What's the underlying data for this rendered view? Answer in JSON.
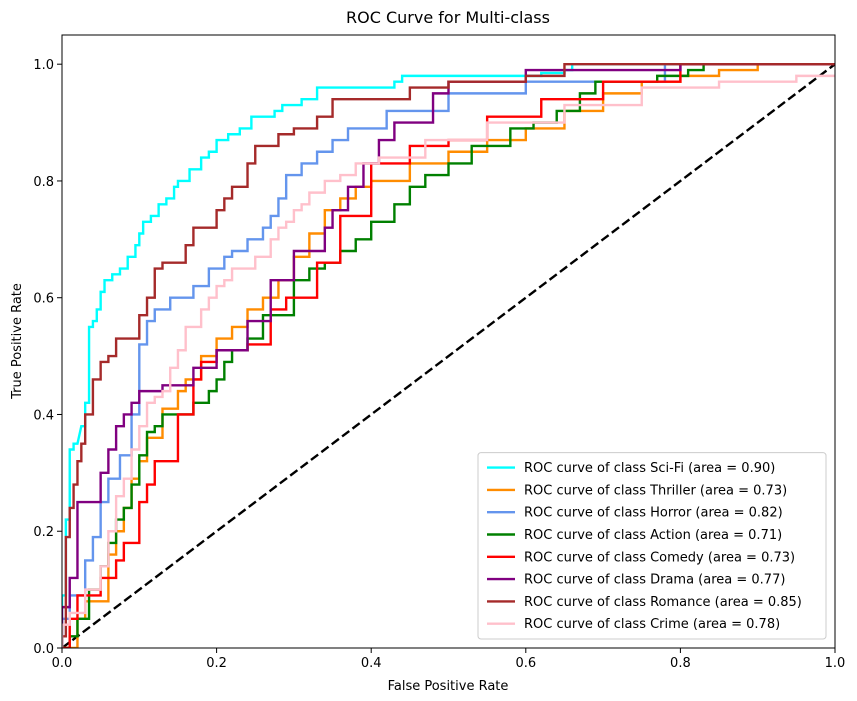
{
  "chart_data": {
    "type": "line",
    "title": "ROC Curve for Multi-class",
    "xlabel": "False Positive Rate",
    "ylabel": "True Positive Rate",
    "xlim": [
      0,
      1
    ],
    "ylim": [
      0,
      1.05
    ],
    "xticks": [
      "0.0",
      "0.2",
      "0.4",
      "0.6",
      "0.8",
      "1.0"
    ],
    "yticks": [
      "0.0",
      "0.2",
      "0.4",
      "0.6",
      "0.8",
      "1.0"
    ],
    "grid": false,
    "legend_position": "lower-right",
    "reference_line": {
      "x": [
        0,
        1
      ],
      "y": [
        0,
        1
      ],
      "color": "#000000",
      "style": "dashed"
    },
    "series": [
      {
        "label": "ROC curve of class Sci-Fi (area = 0.90)",
        "color": "#00ffff",
        "x": [
          0,
          0.0,
          0.005,
          0.005,
          0.01,
          0.01,
          0.015,
          0.015,
          0.02,
          0.025,
          0.03,
          0.03,
          0.035,
          0.035,
          0.04,
          0.04,
          0.045,
          0.045,
          0.05,
          0.05,
          0.055,
          0.055,
          0.065,
          0.065,
          0.075,
          0.075,
          0.085,
          0.085,
          0.095,
          0.095,
          0.1,
          0.1,
          0.105,
          0.105,
          0.115,
          0.115,
          0.125,
          0.125,
          0.135,
          0.135,
          0.145,
          0.145,
          0.15,
          0.15,
          0.165,
          0.165,
          0.18,
          0.18,
          0.19,
          0.19,
          0.2,
          0.2,
          0.215,
          0.215,
          0.23,
          0.23,
          0.245,
          0.245,
          0.275,
          0.275,
          0.285,
          0.285,
          0.31,
          0.31,
          0.33,
          0.33,
          0.43,
          0.43,
          0.44,
          0.44,
          0.62,
          0.62,
          0.65,
          0.65,
          0.66,
          0.66,
          0.7,
          0.7,
          1.0
        ],
        "y": [
          0,
          0.09,
          0.09,
          0.22,
          0.22,
          0.34,
          0.34,
          0.35,
          0.35,
          0.38,
          0.38,
          0.42,
          0.42,
          0.55,
          0.55,
          0.56,
          0.56,
          0.58,
          0.58,
          0.61,
          0.61,
          0.63,
          0.63,
          0.64,
          0.64,
          0.65,
          0.65,
          0.67,
          0.67,
          0.69,
          0.69,
          0.71,
          0.71,
          0.73,
          0.73,
          0.74,
          0.74,
          0.76,
          0.76,
          0.77,
          0.77,
          0.79,
          0.79,
          0.8,
          0.8,
          0.82,
          0.82,
          0.84,
          0.84,
          0.85,
          0.85,
          0.87,
          0.87,
          0.88,
          0.88,
          0.89,
          0.89,
          0.91,
          0.91,
          0.92,
          0.92,
          0.93,
          0.93,
          0.94,
          0.94,
          0.96,
          0.96,
          0.97,
          0.97,
          0.98,
          0.98,
          0.985,
          0.985,
          0.99,
          0.99,
          1.0,
          1.0,
          1.0,
          1.0
        ]
      },
      {
        "label": "ROC curve of class Thriller (area = 0.73)",
        "color": "#ff8c00",
        "x": [
          0,
          0.02,
          0.02,
          0.03,
          0.03,
          0.06,
          0.06,
          0.07,
          0.07,
          0.08,
          0.08,
          0.09,
          0.09,
          0.1,
          0.1,
          0.11,
          0.11,
          0.13,
          0.13,
          0.15,
          0.15,
          0.16,
          0.16,
          0.18,
          0.18,
          0.2,
          0.2,
          0.22,
          0.22,
          0.24,
          0.24,
          0.26,
          0.26,
          0.28,
          0.28,
          0.3,
          0.3,
          0.32,
          0.32,
          0.34,
          0.34,
          0.36,
          0.36,
          0.38,
          0.38,
          0.4,
          0.4,
          0.45,
          0.45,
          0.5,
          0.5,
          0.55,
          0.55,
          0.6,
          0.6,
          0.65,
          0.65,
          0.7,
          0.7,
          0.75,
          0.75,
          0.8,
          0.8,
          0.85,
          0.85,
          0.9,
          0.9,
          1.0
        ],
        "y": [
          0,
          0.0,
          0.05,
          0.05,
          0.08,
          0.08,
          0.16,
          0.16,
          0.2,
          0.2,
          0.24,
          0.24,
          0.29,
          0.29,
          0.32,
          0.32,
          0.36,
          0.36,
          0.41,
          0.41,
          0.44,
          0.44,
          0.46,
          0.46,
          0.5,
          0.5,
          0.53,
          0.53,
          0.55,
          0.55,
          0.58,
          0.58,
          0.6,
          0.6,
          0.63,
          0.63,
          0.67,
          0.67,
          0.71,
          0.71,
          0.75,
          0.75,
          0.77,
          0.77,
          0.79,
          0.79,
          0.8,
          0.8,
          0.83,
          0.83,
          0.85,
          0.85,
          0.87,
          0.87,
          0.89,
          0.89,
          0.92,
          0.92,
          0.95,
          0.95,
          0.97,
          0.97,
          0.98,
          0.98,
          0.99,
          0.99,
          1.0,
          1.0
        ]
      },
      {
        "label": "ROC curve of class Horror (area = 0.82)",
        "color": "#6495ed",
        "x": [
          0,
          0.0,
          0.01,
          0.01,
          0.03,
          0.03,
          0.04,
          0.04,
          0.05,
          0.05,
          0.06,
          0.06,
          0.075,
          0.075,
          0.09,
          0.09,
          0.1,
          0.1,
          0.11,
          0.11,
          0.12,
          0.12,
          0.14,
          0.14,
          0.17,
          0.17,
          0.19,
          0.19,
          0.21,
          0.21,
          0.22,
          0.22,
          0.24,
          0.24,
          0.26,
          0.26,
          0.27,
          0.27,
          0.28,
          0.28,
          0.29,
          0.29,
          0.31,
          0.31,
          0.33,
          0.33,
          0.35,
          0.35,
          0.37,
          0.37,
          0.42,
          0.42,
          0.5,
          0.5,
          0.6,
          0.6,
          0.78,
          0.78,
          1.0
        ],
        "y": [
          0,
          0.05,
          0.05,
          0.09,
          0.09,
          0.15,
          0.15,
          0.19,
          0.19,
          0.25,
          0.25,
          0.29,
          0.29,
          0.33,
          0.33,
          0.4,
          0.4,
          0.52,
          0.52,
          0.56,
          0.56,
          0.58,
          0.58,
          0.6,
          0.6,
          0.62,
          0.62,
          0.65,
          0.65,
          0.67,
          0.67,
          0.68,
          0.68,
          0.7,
          0.7,
          0.72,
          0.72,
          0.74,
          0.74,
          0.77,
          0.77,
          0.81,
          0.81,
          0.83,
          0.83,
          0.85,
          0.85,
          0.87,
          0.87,
          0.89,
          0.89,
          0.92,
          0.92,
          0.95,
          0.95,
          0.97,
          0.97,
          1.0,
          1.0
        ]
      },
      {
        "label": "ROC curve of class Action (area = 0.71)",
        "color": "#008000",
        "x": [
          0,
          0.01,
          0.01,
          0.02,
          0.02,
          0.035,
          0.035,
          0.05,
          0.05,
          0.06,
          0.06,
          0.07,
          0.07,
          0.08,
          0.08,
          0.09,
          0.09,
          0.1,
          0.1,
          0.11,
          0.11,
          0.12,
          0.12,
          0.13,
          0.13,
          0.17,
          0.17,
          0.19,
          0.19,
          0.2,
          0.2,
          0.21,
          0.21,
          0.22,
          0.22,
          0.24,
          0.24,
          0.26,
          0.26,
          0.3,
          0.3,
          0.32,
          0.32,
          0.34,
          0.34,
          0.36,
          0.36,
          0.38,
          0.38,
          0.4,
          0.4,
          0.43,
          0.43,
          0.45,
          0.45,
          0.47,
          0.47,
          0.5,
          0.5,
          0.53,
          0.53,
          0.58,
          0.58,
          0.61,
          0.61,
          0.64,
          0.64,
          0.67,
          0.67,
          0.69,
          0.69,
          0.77,
          0.77,
          0.81,
          0.81,
          0.83,
          0.83,
          0.93,
          0.93,
          1.0
        ],
        "y": [
          0,
          0.0,
          0.02,
          0.02,
          0.05,
          0.05,
          0.1,
          0.1,
          0.14,
          0.14,
          0.18,
          0.18,
          0.22,
          0.22,
          0.24,
          0.24,
          0.28,
          0.28,
          0.33,
          0.33,
          0.37,
          0.37,
          0.38,
          0.38,
          0.4,
          0.4,
          0.42,
          0.42,
          0.44,
          0.44,
          0.46,
          0.46,
          0.49,
          0.49,
          0.51,
          0.51,
          0.53,
          0.53,
          0.57,
          0.57,
          0.63,
          0.63,
          0.65,
          0.65,
          0.66,
          0.66,
          0.68,
          0.68,
          0.7,
          0.7,
          0.73,
          0.73,
          0.76,
          0.76,
          0.79,
          0.79,
          0.81,
          0.81,
          0.83,
          0.83,
          0.86,
          0.86,
          0.89,
          0.89,
          0.9,
          0.9,
          0.92,
          0.92,
          0.95,
          0.95,
          0.97,
          0.97,
          0.98,
          0.98,
          0.99,
          0.99,
          1.0,
          1.0,
          1.0,
          1.0
        ]
      },
      {
        "label": "ROC curve of class Comedy (area = 0.73)",
        "color": "#ff0000",
        "x": [
          0,
          0.01,
          0.01,
          0.02,
          0.02,
          0.05,
          0.05,
          0.07,
          0.07,
          0.08,
          0.08,
          0.1,
          0.1,
          0.11,
          0.11,
          0.12,
          0.12,
          0.15,
          0.15,
          0.17,
          0.17,
          0.18,
          0.18,
          0.2,
          0.2,
          0.24,
          0.24,
          0.27,
          0.27,
          0.29,
          0.29,
          0.33,
          0.33,
          0.36,
          0.36,
          0.4,
          0.4,
          0.45,
          0.45,
          0.5,
          0.5,
          0.55,
          0.55,
          0.62,
          0.62,
          0.7,
          0.7,
          0.8,
          0.8,
          1.0
        ],
        "y": [
          0,
          0.0,
          0.05,
          0.05,
          0.09,
          0.09,
          0.12,
          0.12,
          0.15,
          0.15,
          0.18,
          0.18,
          0.25,
          0.25,
          0.28,
          0.28,
          0.32,
          0.32,
          0.4,
          0.4,
          0.46,
          0.46,
          0.49,
          0.49,
          0.51,
          0.51,
          0.52,
          0.52,
          0.58,
          0.58,
          0.6,
          0.6,
          0.66,
          0.66,
          0.74,
          0.74,
          0.83,
          0.83,
          0.86,
          0.86,
          0.87,
          0.87,
          0.91,
          0.91,
          0.94,
          0.94,
          0.97,
          0.97,
          1.0,
          1.0
        ]
      },
      {
        "label": "ROC curve of class Drama (area = 0.77)",
        "color": "#800080",
        "x": [
          0,
          0.0,
          0.01,
          0.01,
          0.02,
          0.02,
          0.05,
          0.05,
          0.06,
          0.06,
          0.07,
          0.07,
          0.08,
          0.08,
          0.09,
          0.09,
          0.1,
          0.1,
          0.13,
          0.13,
          0.17,
          0.17,
          0.2,
          0.2,
          0.24,
          0.24,
          0.27,
          0.27,
          0.3,
          0.3,
          0.34,
          0.34,
          0.35,
          0.35,
          0.37,
          0.37,
          0.39,
          0.39,
          0.41,
          0.41,
          0.43,
          0.43,
          0.48,
          0.48,
          0.5,
          0.5,
          0.6,
          0.6,
          0.8,
          0.8,
          1.0
        ],
        "y": [
          0,
          0.07,
          0.07,
          0.12,
          0.12,
          0.25,
          0.25,
          0.3,
          0.3,
          0.34,
          0.34,
          0.38,
          0.38,
          0.4,
          0.4,
          0.42,
          0.42,
          0.44,
          0.44,
          0.45,
          0.45,
          0.48,
          0.48,
          0.51,
          0.51,
          0.56,
          0.56,
          0.63,
          0.63,
          0.68,
          0.68,
          0.72,
          0.72,
          0.75,
          0.75,
          0.79,
          0.79,
          0.83,
          0.83,
          0.87,
          0.87,
          0.9,
          0.9,
          0.95,
          0.95,
          0.97,
          0.97,
          0.99,
          0.99,
          1.0,
          1.0
        ]
      },
      {
        "label": "ROC curve of class Romance (area = 0.85)",
        "color": "#a52a2a",
        "x": [
          0,
          0.0,
          0.005,
          0.005,
          0.01,
          0.01,
          0.015,
          0.015,
          0.02,
          0.02,
          0.025,
          0.025,
          0.03,
          0.03,
          0.04,
          0.04,
          0.05,
          0.05,
          0.06,
          0.06,
          0.07,
          0.07,
          0.1,
          0.1,
          0.11,
          0.11,
          0.12,
          0.12,
          0.13,
          0.13,
          0.16,
          0.16,
          0.17,
          0.17,
          0.2,
          0.2,
          0.21,
          0.21,
          0.22,
          0.22,
          0.24,
          0.24,
          0.25,
          0.25,
          0.28,
          0.28,
          0.3,
          0.3,
          0.33,
          0.33,
          0.35,
          0.35,
          0.45,
          0.45,
          0.5,
          0.5,
          0.6,
          0.6,
          0.65,
          0.65,
          0.7,
          0.7,
          1.0
        ],
        "y": [
          0,
          0.02,
          0.02,
          0.19,
          0.19,
          0.24,
          0.24,
          0.28,
          0.28,
          0.32,
          0.32,
          0.35,
          0.35,
          0.4,
          0.4,
          0.46,
          0.46,
          0.49,
          0.49,
          0.5,
          0.5,
          0.53,
          0.53,
          0.57,
          0.57,
          0.6,
          0.6,
          0.65,
          0.65,
          0.66,
          0.66,
          0.69,
          0.69,
          0.72,
          0.72,
          0.75,
          0.75,
          0.77,
          0.77,
          0.79,
          0.79,
          0.83,
          0.83,
          0.86,
          0.86,
          0.88,
          0.88,
          0.89,
          0.89,
          0.91,
          0.91,
          0.94,
          0.94,
          0.96,
          0.96,
          0.97,
          0.97,
          0.98,
          0.98,
          1.0,
          1.0,
          1.0,
          1.0
        ]
      },
      {
        "label": "ROC curve of class Crime (area = 0.78)",
        "color": "#ffc0cb",
        "x": [
          0,
          0.0,
          0.01,
          0.01,
          0.03,
          0.03,
          0.05,
          0.05,
          0.06,
          0.06,
          0.07,
          0.07,
          0.08,
          0.08,
          0.09,
          0.09,
          0.1,
          0.1,
          0.11,
          0.11,
          0.12,
          0.12,
          0.13,
          0.13,
          0.14,
          0.14,
          0.15,
          0.15,
          0.16,
          0.16,
          0.18,
          0.18,
          0.19,
          0.19,
          0.2,
          0.2,
          0.21,
          0.21,
          0.22,
          0.22,
          0.25,
          0.25,
          0.27,
          0.27,
          0.28,
          0.28,
          0.29,
          0.29,
          0.3,
          0.3,
          0.31,
          0.31,
          0.32,
          0.32,
          0.34,
          0.34,
          0.36,
          0.36,
          0.38,
          0.38,
          0.41,
          0.41,
          0.47,
          0.47,
          0.55,
          0.55,
          0.65,
          0.65,
          0.75,
          0.75,
          0.85,
          0.85,
          0.95,
          0.95,
          1.0
        ],
        "y": [
          0,
          0.04,
          0.04,
          0.06,
          0.06,
          0.1,
          0.1,
          0.14,
          0.14,
          0.2,
          0.2,
          0.26,
          0.26,
          0.29,
          0.29,
          0.34,
          0.34,
          0.38,
          0.38,
          0.42,
          0.42,
          0.43,
          0.43,
          0.44,
          0.44,
          0.48,
          0.48,
          0.51,
          0.51,
          0.55,
          0.55,
          0.58,
          0.58,
          0.6,
          0.6,
          0.62,
          0.62,
          0.63,
          0.63,
          0.65,
          0.65,
          0.67,
          0.67,
          0.7,
          0.7,
          0.72,
          0.72,
          0.73,
          0.73,
          0.75,
          0.75,
          0.76,
          0.76,
          0.78,
          0.78,
          0.8,
          0.8,
          0.81,
          0.81,
          0.83,
          0.83,
          0.84,
          0.84,
          0.87,
          0.87,
          0.9,
          0.9,
          0.93,
          0.93,
          0.96,
          0.96,
          0.97,
          0.97,
          0.98,
          0.98
        ]
      }
    ]
  }
}
